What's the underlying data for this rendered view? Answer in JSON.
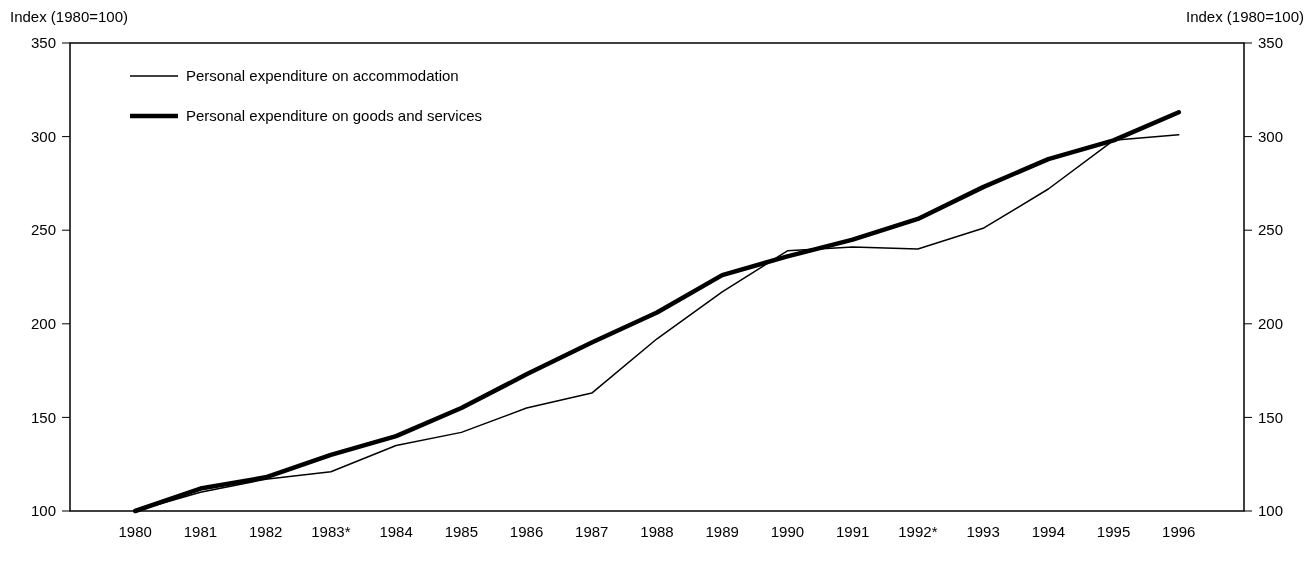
{
  "chart_data": {
    "type": "line",
    "ylabel": "Index (1980=100)",
    "y2label": "Index (1980=100)",
    "categories": [
      "1980",
      "1981",
      "1982",
      "1983*",
      "1984",
      "1985",
      "1986",
      "1987",
      "1988",
      "1989",
      "1990",
      "1991",
      "1992*",
      "1993",
      "1994",
      "1995",
      "1996"
    ],
    "series": [
      {
        "name": "Personal expenditure on accommodation",
        "color": "#000000",
        "values": [
          100,
          110,
          117,
          121,
          135,
          142,
          155,
          163,
          192,
          217,
          239,
          241,
          240,
          251,
          272,
          298,
          301
        ]
      },
      {
        "name": "Personal expenditure on goods and services",
        "color": "#000000",
        "values": [
          100,
          112,
          118,
          130,
          140,
          155,
          173,
          190,
          206,
          226,
          236,
          245,
          256,
          273,
          288,
          298,
          313
        ]
      }
    ],
    "ylim": [
      100,
      350
    ],
    "yticks": [
      100,
      150,
      200,
      250,
      300,
      350
    ],
    "y2lim": [
      100,
      350
    ],
    "y2ticks": [
      100,
      150,
      200,
      250,
      300,
      350
    ],
    "grid": false,
    "legend": "top left",
    "marker": "none",
    "line_style": "solid"
  }
}
